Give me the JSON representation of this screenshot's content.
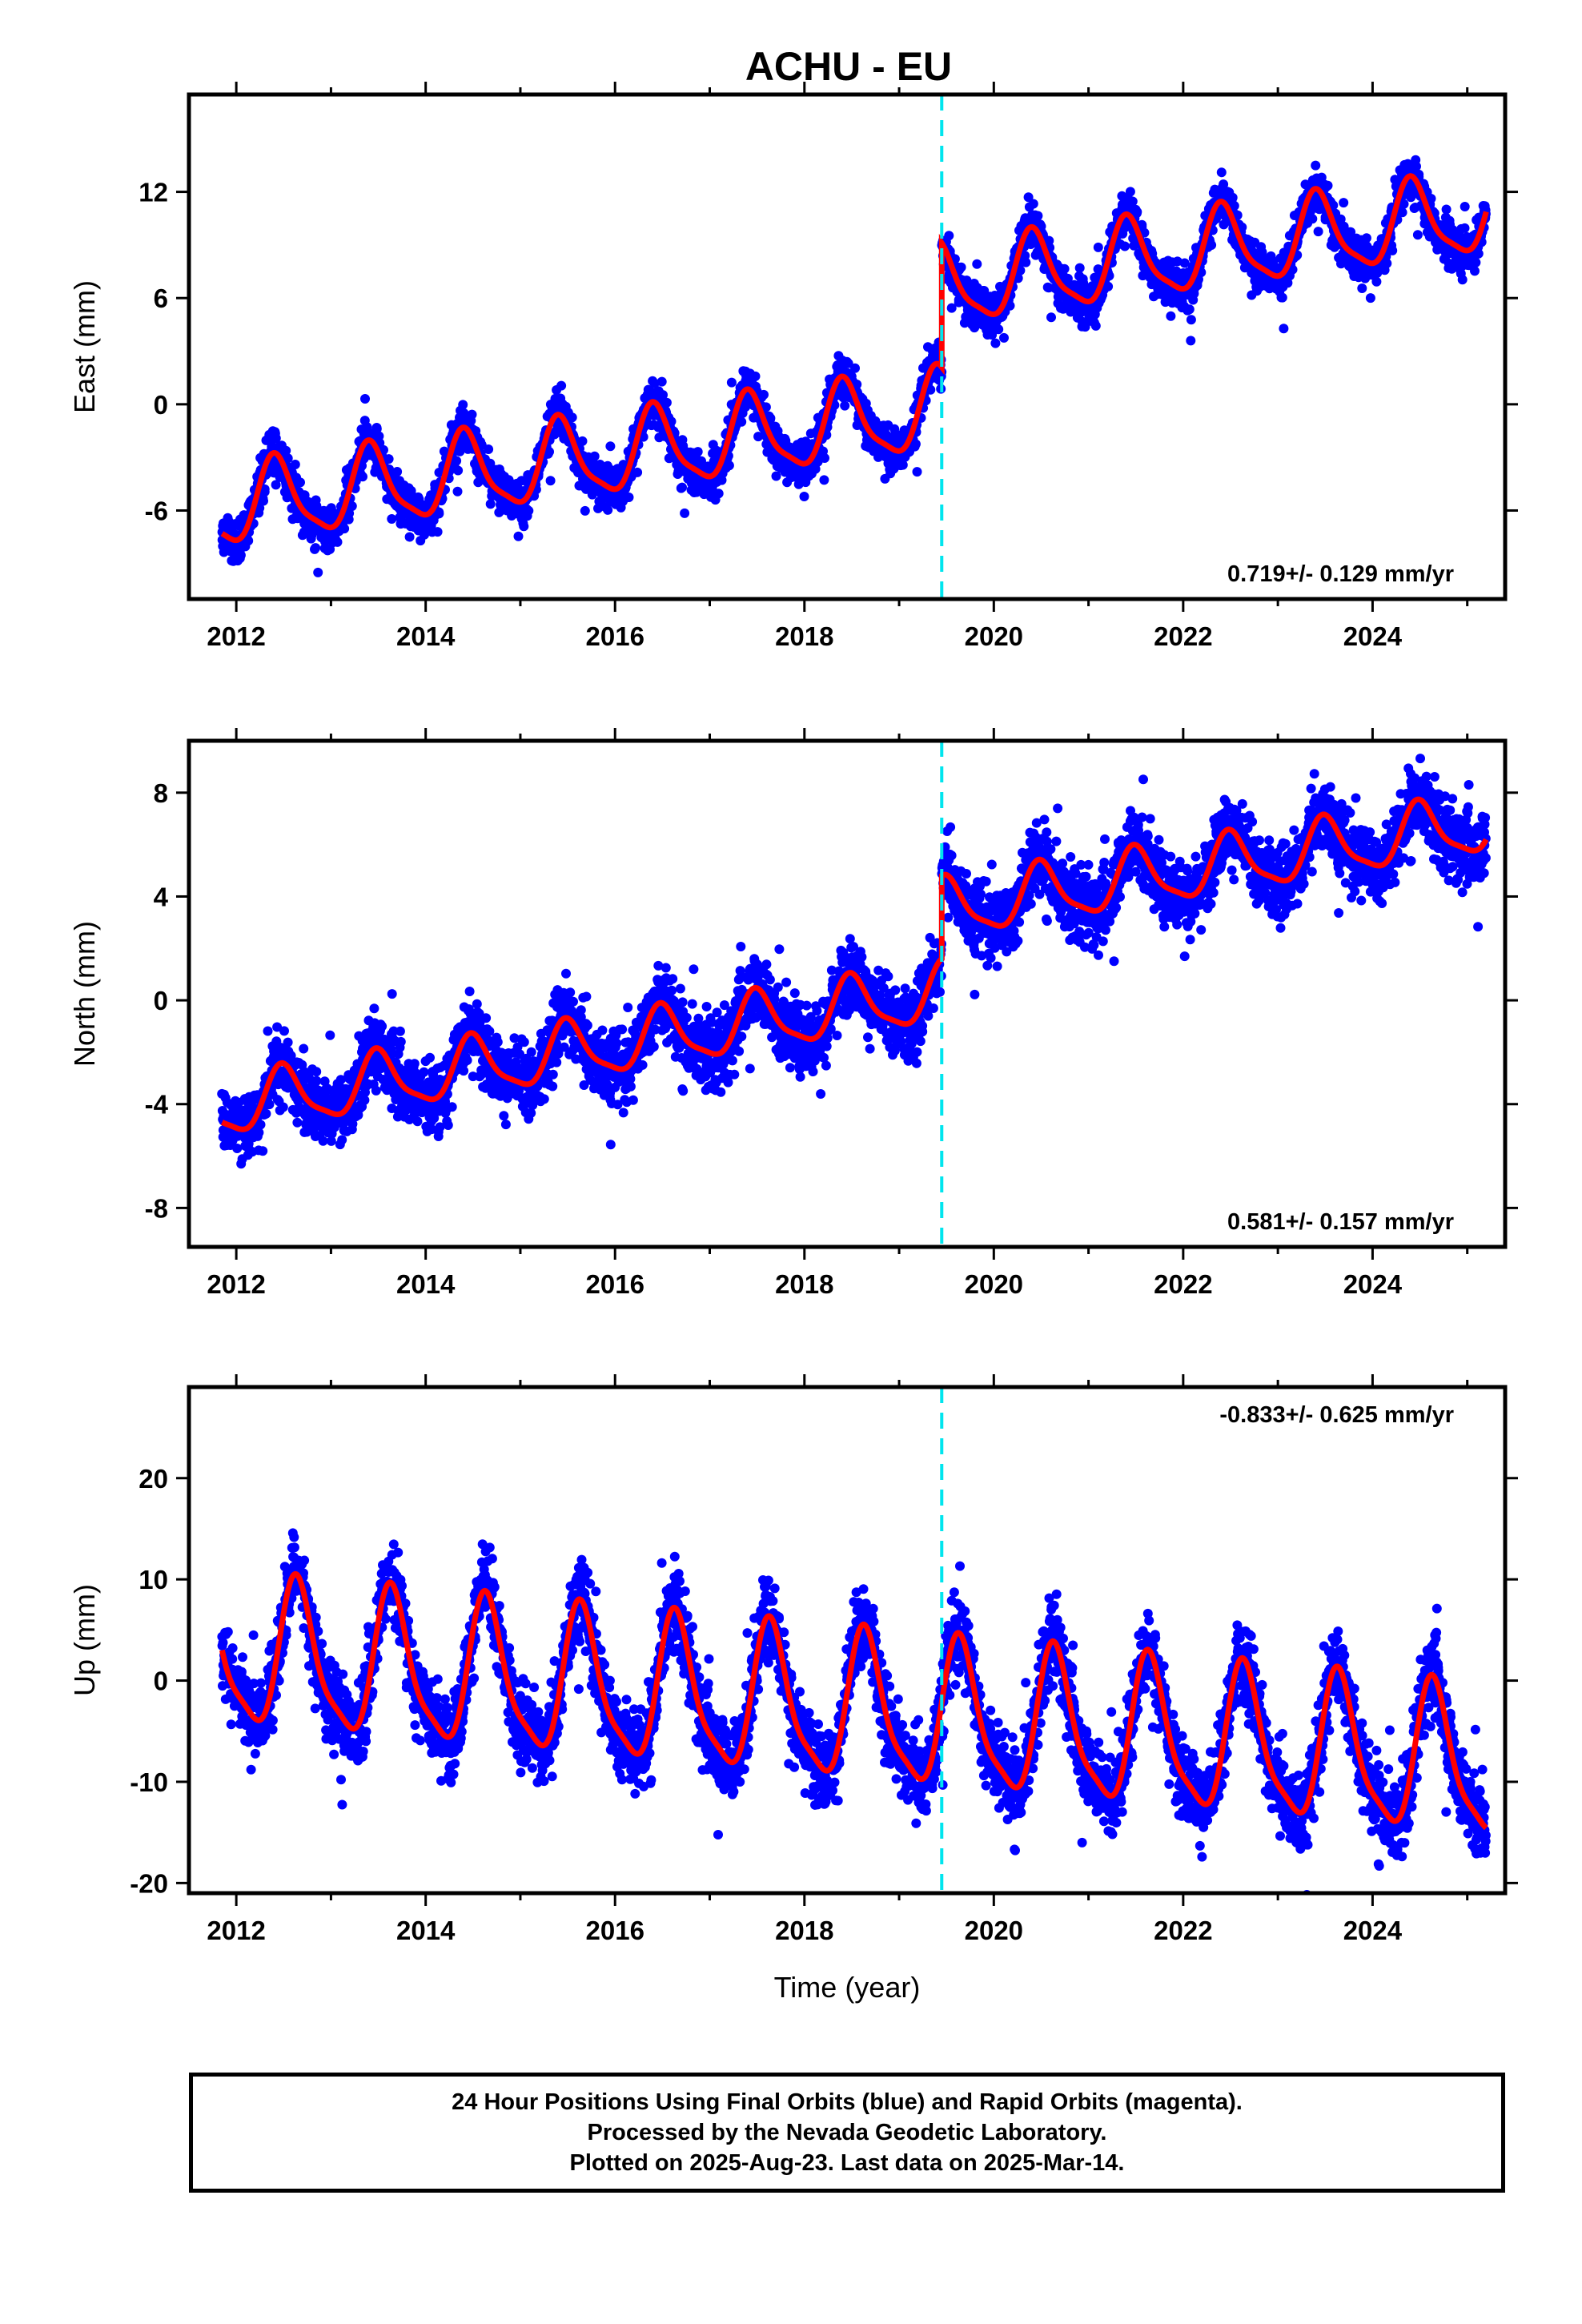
{
  "title": "ACHU - EU",
  "colors": {
    "data": "#0000ff",
    "model": "#ff0000",
    "offset": "#00e5ee",
    "rapid": "#ff00ff"
  },
  "chart_data": [
    {
      "type": "scatter",
      "component": "east",
      "ylabel": "East (mm)",
      "xlabel": "",
      "xlim": [
        2011.5,
        2025.4
      ],
      "ylim": [
        -11,
        17.5
      ],
      "xticks": [
        "2012",
        "2014",
        "2016",
        "2018",
        "2020",
        "2022",
        "2024"
      ],
      "yticks": [
        "12",
        "6",
        "0",
        "-6"
      ],
      "rate_label": "0.719+/- 0.129 mm/yr",
      "offset_epoch": 2019.45,
      "model": {
        "start": 2011.85,
        "end": 2025.2,
        "value_at_start": -7.3,
        "trend_mm_per_yr": 0.72,
        "seasonal_amplitude": 2.2,
        "seasonal_phase_peak": 0.42,
        "step_at_offset": 7.0
      },
      "scatter_spread": 1.2,
      "n_points": 4400
    },
    {
      "type": "scatter",
      "component": "north",
      "ylabel": "North (mm)",
      "xlabel": "",
      "xlim": [
        2011.5,
        2025.4
      ],
      "ylim": [
        -9.5,
        10
      ],
      "xticks": [
        "2012",
        "2014",
        "2016",
        "2018",
        "2020",
        "2022",
        "2024"
      ],
      "yticks": [
        "8",
        "4",
        "0",
        "-4",
        "-8"
      ],
      "rate_label": "0.581+/- 0.157 mm/yr",
      "offset_epoch": 2019.45,
      "model": {
        "start": 2011.85,
        "end": 2025.2,
        "value_at_start": -4.7,
        "trend_mm_per_yr": 0.58,
        "seasonal_amplitude": 1.1,
        "seasonal_phase_peak": 0.5,
        "step_at_offset": 3.2
      },
      "scatter_spread": 1.3,
      "n_points": 4400
    },
    {
      "type": "scatter",
      "component": "up",
      "ylabel": "Up (mm)",
      "xlabel": "Time (year)",
      "xlim": [
        2011.5,
        2025.4
      ],
      "ylim": [
        -21,
        29
      ],
      "xticks": [
        "2012",
        "2014",
        "2016",
        "2018",
        "2020",
        "2022",
        "2024"
      ],
      "yticks": [
        "20",
        "10",
        "0",
        "-10",
        "-20"
      ],
      "rate_label": "-0.833+/- 0.625 mm/yr",
      "offset_epoch": 2019.45,
      "model": {
        "start": 2011.85,
        "end": 2025.2,
        "value_at_start": 3.0,
        "trend_mm_per_yr": -0.83,
        "seasonal_amplitude": 7.0,
        "seasonal_phase_peak": 0.65,
        "step_at_offset": 0
      },
      "scatter_spread": 3.8,
      "n_points": 4400
    }
  ],
  "footer": {
    "line1": "24 Hour Positions Using Final Orbits (blue) and Rapid Orbits (magenta).",
    "line2": "Processed by the Nevada Geodetic Laboratory.",
    "line3": "Plotted on 2025-Aug-23. Last data on 2025-Mar-14."
  }
}
